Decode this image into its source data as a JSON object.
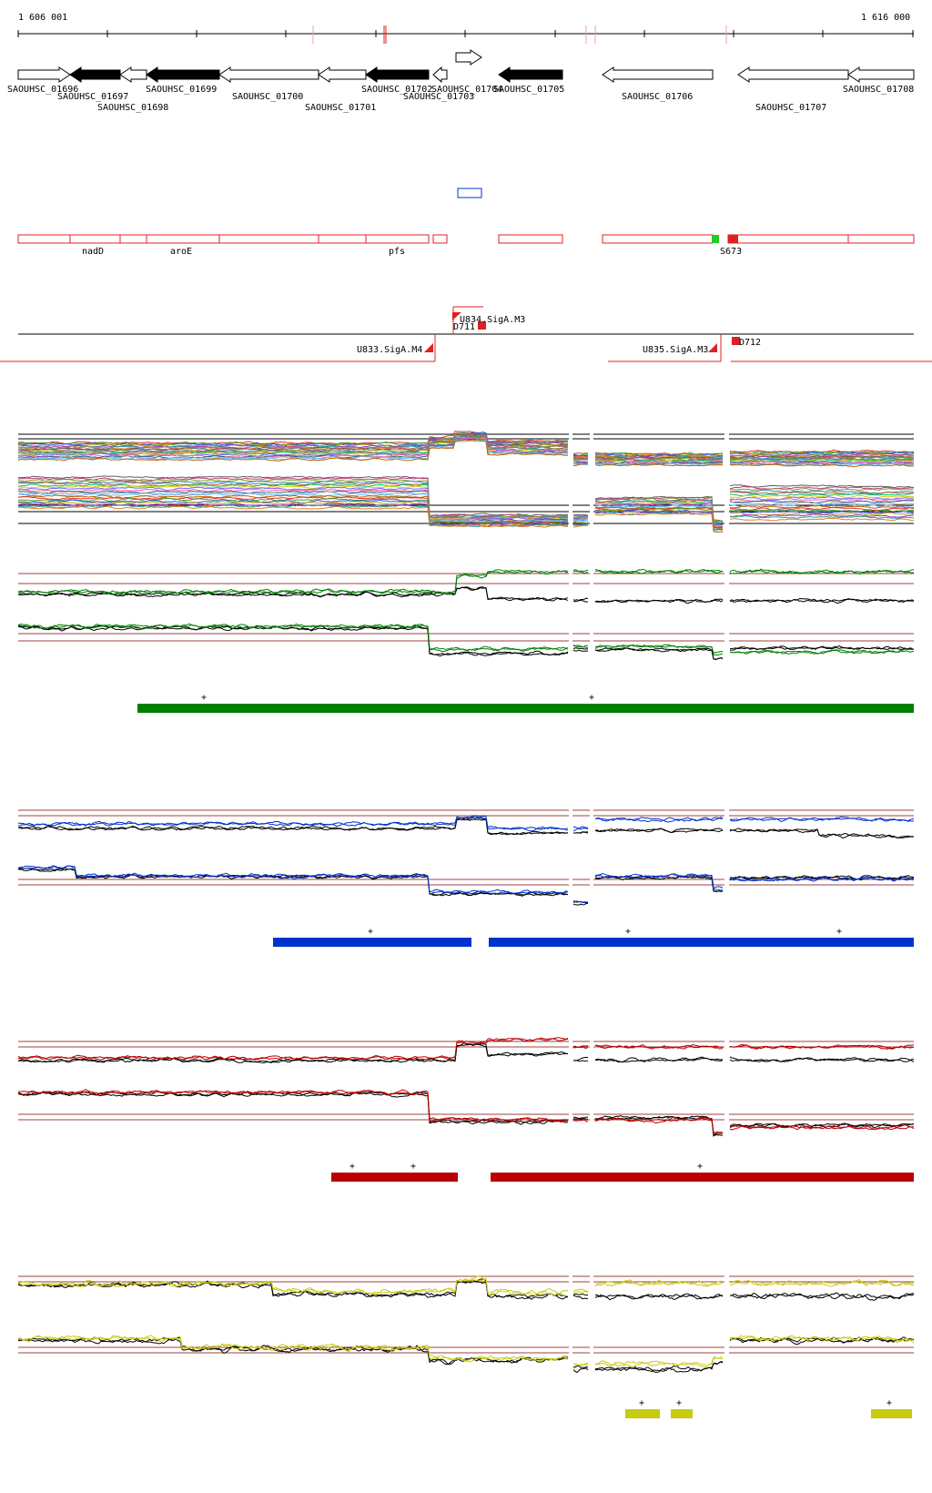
{
  "ruler": {
    "start_label": "1 606 001",
    "end_label": "1 616 000"
  },
  "genes": [
    {
      "id": "SAOUHSC_01696",
      "strand": "+",
      "filled": false
    },
    {
      "id": "SAOUHSC_01697",
      "strand": "-",
      "filled": true
    },
    {
      "id": "SAOUHSC_01698",
      "strand": "-",
      "filled": false
    },
    {
      "id": "SAOUHSC_01699",
      "strand": "-",
      "filled": true
    },
    {
      "id": "SAOUHSC_01700",
      "strand": "-",
      "filled": false
    },
    {
      "id": "SAOUHSC_01701",
      "strand": "-",
      "filled": false
    },
    {
      "id": "SAOUHSC_01702",
      "strand": "-",
      "filled": true
    },
    {
      "id": "SAOUHSC_01703",
      "strand": "-",
      "filled": false
    },
    {
      "id": "SAOUHSC_01704",
      "strand": "+",
      "filled": false
    },
    {
      "id": "SAOUHSC_01705",
      "strand": "-",
      "filled": true
    },
    {
      "id": "SAOUHSC_01706",
      "strand": "-",
      "filled": false
    },
    {
      "id": "SAOUHSC_01707",
      "strand": "-",
      "filled": false
    },
    {
      "id": "SAOUHSC_01708",
      "strand": "-",
      "filled": false
    }
  ],
  "gene_names": [
    "nadD",
    "aroE",
    "pfs",
    "S673"
  ],
  "regulatory": {
    "forward": [
      "U834.SigA.M3",
      "D711"
    ],
    "reverse": [
      "U833.SigA.M4",
      "U835.SigA.M3",
      "D712"
    ]
  },
  "colors": {
    "annotation": "#e02020",
    "green": "#008000",
    "blue": "#0033cc",
    "red": "#bb0000",
    "yellow": "#c8cc10",
    "reference": "#000000",
    "threshold": "#a04040"
  },
  "panels": [
    {
      "color_name": "green",
      "marks": [
        "+",
        "+"
      ]
    },
    {
      "color_name": "blue",
      "marks": [
        "+",
        "+",
        "+"
      ]
    },
    {
      "color_name": "red",
      "marks": [
        "+",
        "+",
        "+"
      ]
    },
    {
      "color_name": "yellow",
      "marks": [
        "+",
        "+",
        "+"
      ]
    }
  ]
}
